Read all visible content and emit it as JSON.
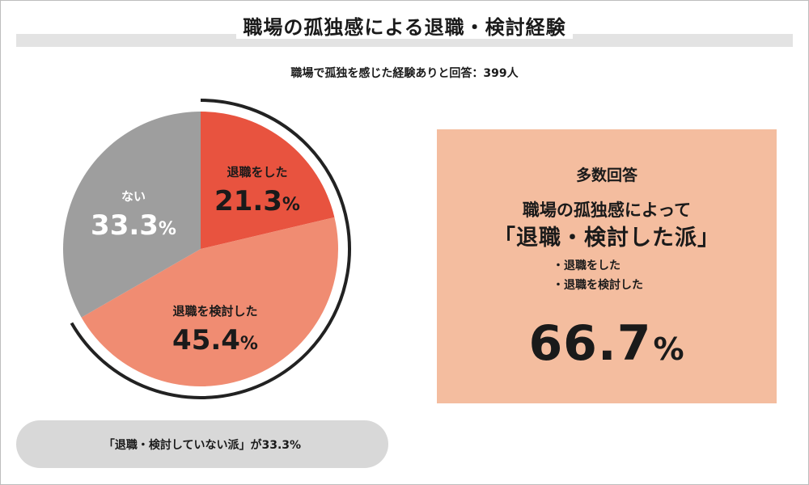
{
  "header": {
    "title": "職場の孤独感による退職・検討経験",
    "subtitle": "職場で孤独を感じた経験ありと回答：399人"
  },
  "colors": {
    "retired": "#e8533f",
    "considered": "#f08c72",
    "none": "#9e9e9e",
    "callout_bg": "#f4bd9f",
    "pill_bg": "#d8d8d8",
    "arc": "#222222"
  },
  "chart_data": {
    "type": "pie",
    "title": "",
    "slices": [
      {
        "label": "退職をした",
        "value": 21.3,
        "display": "21.3",
        "unit": "%"
      },
      {
        "label": "退職を検討した",
        "value": 45.4,
        "display": "45.4",
        "unit": "%"
      },
      {
        "label": "ない",
        "value": 33.3,
        "display": "33.3",
        "unit": "%"
      }
    ],
    "start": "12 o'clock",
    "direction": "clockwise",
    "legend": "none"
  },
  "callout": {
    "heading": "多数回答",
    "line1": "職場の孤独感によって",
    "line2": "「退職・検討した派」",
    "bullets": [
      "・退職をした",
      "・退職を検討した"
    ],
    "value": "66.7",
    "unit": "%"
  },
  "footer_pill": {
    "text": "「退職・検討していない派」が33.3%"
  }
}
